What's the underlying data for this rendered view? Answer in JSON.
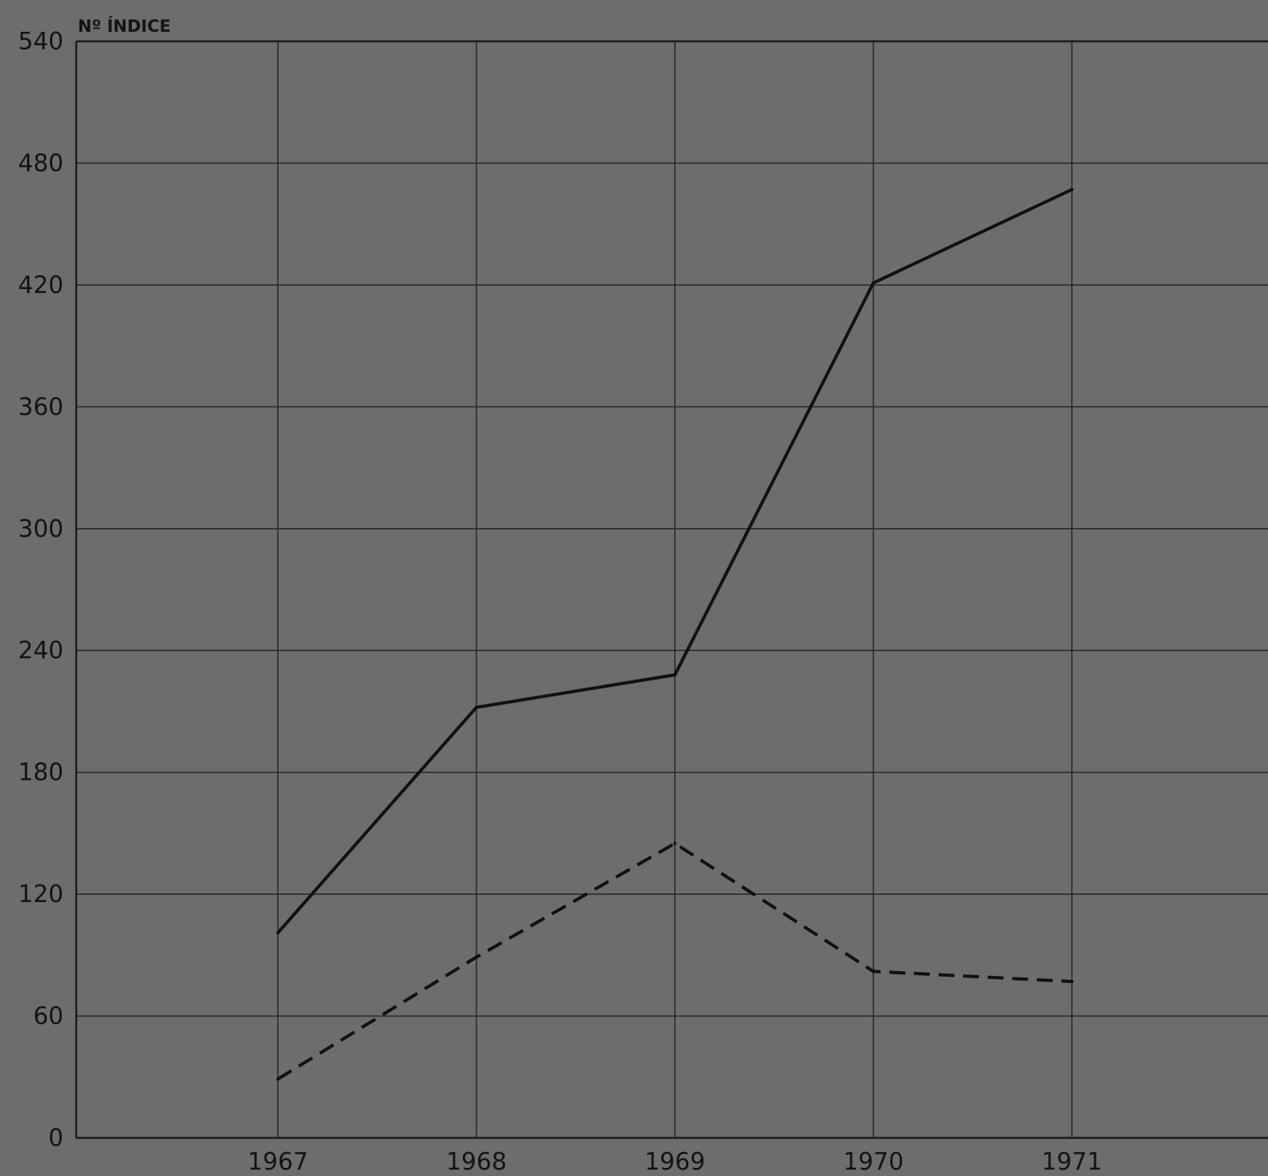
{
  "chart_data": {
    "type": "line",
    "ylabel": "Nº ÍNDICE",
    "xlabel": "",
    "x": [
      "1967",
      "1968",
      "1969",
      "1970",
      "1971"
    ],
    "ylim": [
      0,
      540
    ],
    "yticks": [
      0,
      60,
      120,
      180,
      240,
      300,
      360,
      420,
      480,
      540
    ],
    "grid": true,
    "legend": "none",
    "series": [
      {
        "style": "solid",
        "color": "#111111",
        "values": [
          101,
          212,
          228,
          421,
          467
        ]
      },
      {
        "style": "dashed",
        "color": "#111111",
        "values": [
          29,
          89,
          145,
          82,
          77
        ]
      }
    ]
  },
  "colors": {
    "background": "#6d6d6d",
    "grid": "#2a2a2a",
    "lines": "#111111",
    "text": "#141414"
  }
}
